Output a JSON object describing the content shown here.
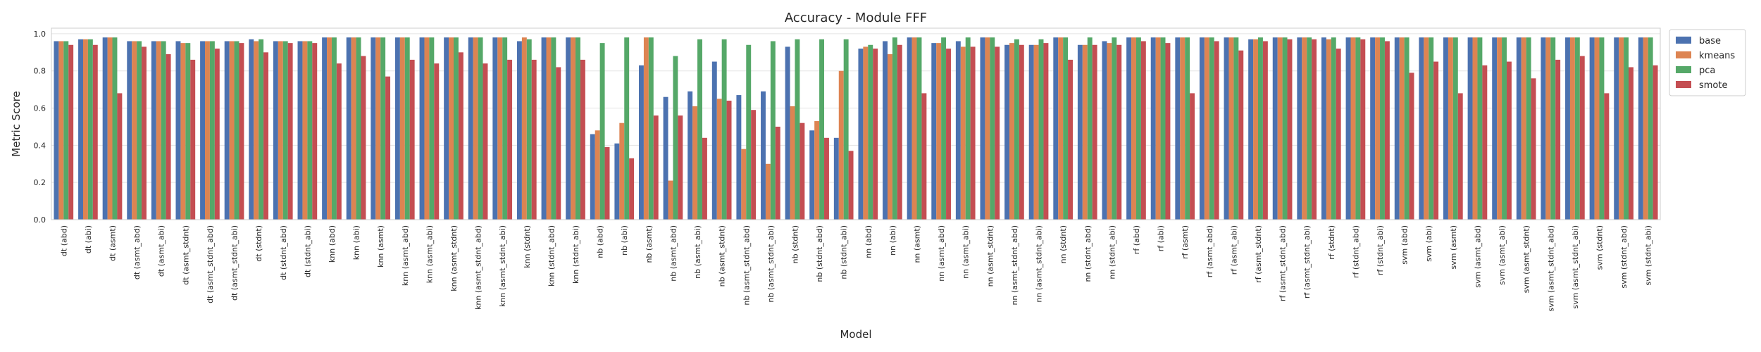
{
  "chart_data": {
    "type": "bar",
    "title": "Accuracy - Module FFF",
    "xlabel": "Model",
    "ylabel": "Metric Score",
    "ylim": [
      0,
      1.03
    ],
    "yticks": [
      "0.0",
      "0.2",
      "0.4",
      "0.6",
      "0.8",
      "1.0"
    ],
    "grid": true,
    "legend_position": "outside-top-right",
    "categories": [
      "dt (abd)",
      "dt (abi)",
      "dt (asmt)",
      "dt (asmt_abd)",
      "dt (asmt_abi)",
      "dt (asmt_stdnt)",
      "dt (asmt_stdnt_abd)",
      "dt (asmt_stdnt_abi)",
      "dt (stdnt)",
      "dt (stdnt_abd)",
      "dt (stdnt_abi)",
      "knn (abd)",
      "knn (abi)",
      "knn (asmt)",
      "knn (asmt_abd)",
      "knn (asmt_abi)",
      "knn (asmt_stdnt)",
      "knn (asmt_stdnt_abd)",
      "knn (asmt_stdnt_abi)",
      "knn (stdnt)",
      "knn (stdnt_abd)",
      "knn (stdnt_abi)",
      "nb (abd)",
      "nb (abi)",
      "nb (asmt)",
      "nb (asmt_abd)",
      "nb (asmt_abi)",
      "nb (asmt_stdnt)",
      "nb (asmt_stdnt_abd)",
      "nb (asmt_stdnt_abi)",
      "nb (stdnt)",
      "nb (stdnt_abd)",
      "nb (stdnt_abi)",
      "nn (abd)",
      "nn (abi)",
      "nn (asmt)",
      "nn (asmt_abd)",
      "nn (asmt_abi)",
      "nn (asmt_stdnt)",
      "nn (asmt_stdnt_abd)",
      "nn (asmt_stdnt_abi)",
      "nn (stdnt)",
      "nn (stdnt_abd)",
      "nn (stdnt_abi)",
      "rf (abd)",
      "rf (abi)",
      "rf (asmt)",
      "rf (asmt_abd)",
      "rf (asmt_abi)",
      "rf (asmt_stdnt)",
      "rf (asmt_stdnt_abd)",
      "rf (asmt_stdnt_abi)",
      "rf (stdnt)",
      "rf (stdnt_abd)",
      "rf (stdnt_abi)",
      "svm (abd)",
      "svm (abi)",
      "svm (asmt)",
      "svm (asmt_abd)",
      "svm (asmt_abi)",
      "svm (asmt_stdnt)",
      "svm (asmt_stdnt_abd)",
      "svm (asmt_stdnt_abi)",
      "svm (stdnt)",
      "svm (stdnt_abd)",
      "svm (stdnt_abi)"
    ],
    "series": [
      {
        "name": "base",
        "color": "#4c72b0",
        "values": [
          0.96,
          0.97,
          0.98,
          0.96,
          0.96,
          0.96,
          0.96,
          0.96,
          0.97,
          0.96,
          0.96,
          0.98,
          0.98,
          0.98,
          0.98,
          0.98,
          0.98,
          0.98,
          0.98,
          0.96,
          0.98,
          0.98,
          0.46,
          0.41,
          0.83,
          0.66,
          0.69,
          0.85,
          0.67,
          0.69,
          0.93,
          0.48,
          0.44,
          0.92,
          0.96,
          0.98,
          0.95,
          0.96,
          0.98,
          0.94,
          0.94,
          0.98,
          0.94,
          0.96,
          0.98,
          0.98,
          0.98,
          0.98,
          0.98,
          0.97,
          0.98,
          0.98,
          0.98,
          0.98,
          0.98,
          0.98,
          0.98,
          0.98,
          0.98,
          0.98,
          0.98,
          0.98,
          0.98,
          0.98,
          0.98,
          0.98
        ]
      },
      {
        "name": "kmeans",
        "color": "#dd8452",
        "values": [
          0.96,
          0.97,
          0.98,
          0.96,
          0.96,
          0.95,
          0.96,
          0.96,
          0.96,
          0.96,
          0.96,
          0.98,
          0.98,
          0.98,
          0.98,
          0.98,
          0.98,
          0.98,
          0.98,
          0.98,
          0.98,
          0.98,
          0.48,
          0.52,
          0.98,
          0.21,
          0.61,
          0.65,
          0.38,
          0.3,
          0.61,
          0.53,
          0.8,
          0.93,
          0.89,
          0.98,
          0.95,
          0.93,
          0.98,
          0.95,
          0.94,
          0.98,
          0.94,
          0.95,
          0.98,
          0.98,
          0.98,
          0.98,
          0.98,
          0.97,
          0.98,
          0.98,
          0.97,
          0.98,
          0.98,
          0.98,
          0.98,
          0.98,
          0.98,
          0.98,
          0.98,
          0.98,
          0.98,
          0.98,
          0.98,
          0.98
        ]
      },
      {
        "name": "pca",
        "color": "#55a868",
        "values": [
          0.96,
          0.97,
          0.98,
          0.96,
          0.96,
          0.95,
          0.96,
          0.96,
          0.97,
          0.96,
          0.96,
          0.98,
          0.98,
          0.98,
          0.98,
          0.98,
          0.98,
          0.98,
          0.98,
          0.97,
          0.98,
          0.98,
          0.95,
          0.98,
          0.98,
          0.88,
          0.97,
          0.97,
          0.94,
          0.96,
          0.97,
          0.97,
          0.97,
          0.94,
          0.98,
          0.98,
          0.98,
          0.98,
          0.98,
          0.97,
          0.97,
          0.98,
          0.98,
          0.98,
          0.98,
          0.98,
          0.98,
          0.98,
          0.98,
          0.98,
          0.98,
          0.98,
          0.98,
          0.98,
          0.98,
          0.98,
          0.98,
          0.98,
          0.98,
          0.98,
          0.98,
          0.98,
          0.98,
          0.98,
          0.98,
          0.98
        ]
      },
      {
        "name": "smote",
        "color": "#c44e52",
        "values": [
          0.94,
          0.94,
          0.68,
          0.93,
          0.89,
          0.86,
          0.92,
          0.95,
          0.9,
          0.95,
          0.95,
          0.84,
          0.88,
          0.77,
          0.86,
          0.84,
          0.9,
          0.84,
          0.86,
          0.86,
          0.82,
          0.86,
          0.39,
          0.33,
          0.56,
          0.56,
          0.44,
          0.64,
          0.59,
          0.5,
          0.52,
          0.44,
          0.37,
          0.92,
          0.94,
          0.68,
          0.92,
          0.93,
          0.93,
          0.94,
          0.95,
          0.86,
          0.94,
          0.94,
          0.96,
          0.95,
          0.68,
          0.96,
          0.91,
          0.96,
          0.97,
          0.97,
          0.92,
          0.97,
          0.96,
          0.79,
          0.85,
          0.68,
          0.83,
          0.85,
          0.76,
          0.86,
          0.88,
          0.68,
          0.82,
          0.83
        ]
      }
    ]
  }
}
